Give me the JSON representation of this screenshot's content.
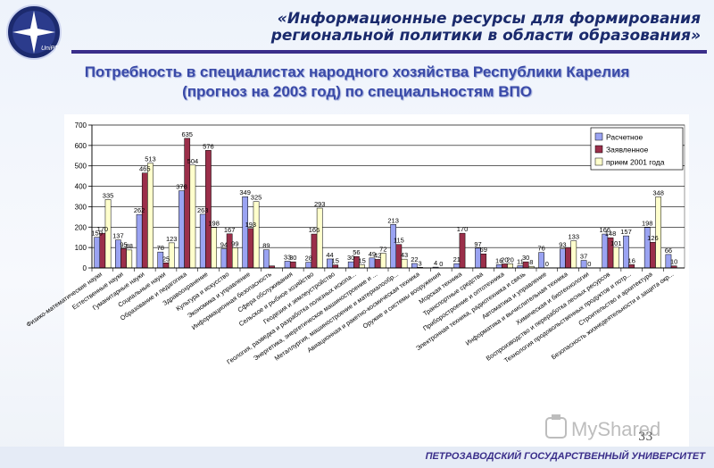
{
  "header": {
    "title_line1": "«Информационные ресурсы для формирования",
    "title_line2": "региональной политики в области образования»",
    "logo_text": "UniPT"
  },
  "slide": {
    "title_line1": "Потребность в специалистах народного хозяйства Республики Карелия",
    "title_line2": "(прогноз на 2003 год) по специальностям ВПО"
  },
  "footer": {
    "text": "ПЕТРОЗАВОДСКИЙ ГОСУДАРСТВЕННЫЙ УНИВЕРСИТЕТ",
    "page": "33",
    "watermark": "MyShared"
  },
  "colors": {
    "series1": "#9aa3f2",
    "series2": "#9b2f4a",
    "series3": "#ffffcc"
  },
  "chart_data": {
    "type": "bar",
    "title": "",
    "xlabel": "",
    "ylabel": "",
    "ylim": [
      0,
      700
    ],
    "yticks": [
      0,
      100,
      200,
      300,
      400,
      500,
      600,
      700
    ],
    "grid": true,
    "legend_position": "top-right",
    "categories": [
      "Физико-математические науки",
      "Естественные науки",
      "Гуманитарные науки",
      "Социальные науки",
      "Образование и педагогика",
      "Здравоохранение",
      "Культура и искусство",
      "Экономика и управление",
      "Информационная безопасность",
      "Сфера обслуживания",
      "Сельское и рыбное хозяйство",
      "Геодезия и землеустройство",
      "Геология, разведка и разработка полезных ископа...",
      "Энергетика, энергетическое машиностроение и ...",
      "Металлургия, машиностроение и материалообр...",
      "Авиационная и ракетно-космическая техника",
      "Оружие и системы вооружения",
      "Морская техника",
      "Транспортные средства",
      "Приборостроение и оптотехника",
      "Электронная техника, радиотехника и связь",
      "Автоматика и управление",
      "Информатика и вычислительная техника",
      "Химическая и биотехнологии",
      "Воспроизводство и переработка лесных ресурсов",
      "Технология продовольственных продуктов и потр...",
      "Строительство и архитектура",
      "Безопасность жизнедеятельности и защита окр..."
    ],
    "series": [
      {
        "name": "Расчетное",
        "values": [
          150,
          137,
          262,
          78,
          378,
          263,
          94,
          349,
          89,
          33,
          28,
          44,
          30,
          49,
          213,
          22,
          4,
          21,
          97,
          16,
          11,
          76,
          93,
          37,
          166,
          157,
          198,
          66
        ]
      },
      {
        "name": "Заявленное",
        "values": [
          170,
          95,
          465,
          25,
          635,
          576,
          167,
          193,
          10,
          30,
          166,
          15,
          56,
          42,
          115,
          3,
          0,
          170,
          69,
          20,
          30,
          0,
          100,
          0,
          148,
          16,
          126,
          10
        ]
      },
      {
        "name": "прием 2001 года",
        "values": [
          335,
          88,
          513,
          123,
          504,
          198,
          99,
          325,
          0,
          0,
          293,
          0,
          15,
          72,
          43,
          0,
          0,
          0,
          0,
          20,
          8,
          0,
          133,
          0,
          101,
          0,
          348,
          0
        ]
      }
    ],
    "data_labels": [
      [
        "150",
        "137",
        "262",
        "78",
        "378",
        "263",
        "94",
        "349",
        "89",
        "33",
        "28",
        "44",
        "30",
        "49",
        "213",
        "22",
        "4",
        "21",
        "97",
        "16",
        "11",
        "76",
        "93",
        "37",
        "166",
        "157",
        "198",
        "66"
      ],
      [
        "170",
        "95",
        "465",
        "25",
        "635",
        "576",
        "167",
        "193",
        "",
        "30",
        "166",
        "15",
        "56",
        "42",
        "115",
        "3",
        "0",
        "170",
        "69",
        "20",
        "30",
        "0",
        "",
        "0",
        "148",
        "16",
        "126",
        "10"
      ],
      [
        "335",
        "88",
        "513",
        "123",
        "504",
        "198",
        "99",
        "325",
        "",
        "",
        "293",
        "",
        "15",
        "72",
        "43",
        "",
        "",
        "",
        "",
        "20",
        "8",
        "",
        "133",
        "",
        "101",
        "",
        "348",
        ""
      ]
    ]
  }
}
